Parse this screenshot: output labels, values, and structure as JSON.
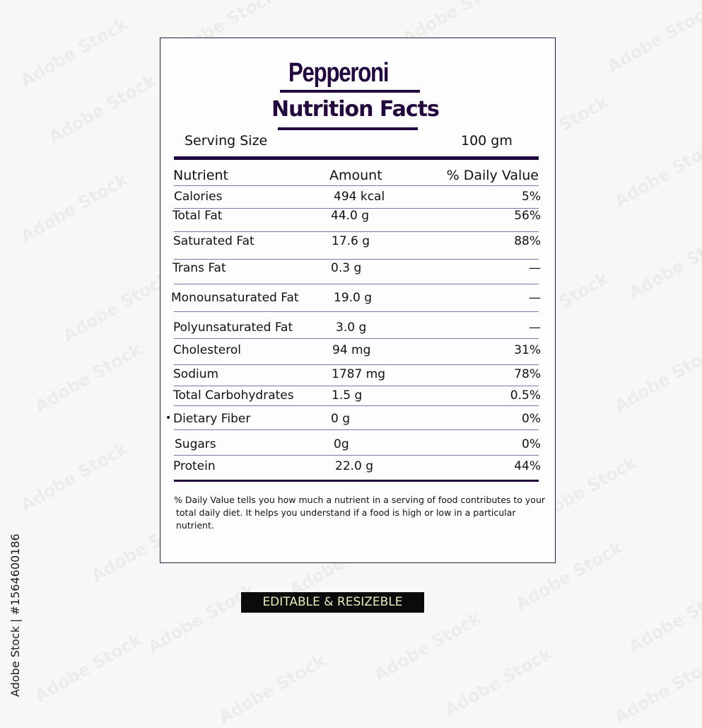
{
  "label": {
    "product_name": "Pepperoni",
    "heading": "Nutrition Facts",
    "serving_size_label": "Serving Size",
    "serving_size_value": "100 gm",
    "columns": {
      "nutrient": "Nutrient",
      "amount": "Amount",
      "daily_value": "% Daily Value"
    },
    "rows": [
      {
        "nutrient": "Calories",
        "amount": "494 kcal",
        "dv": "5%"
      },
      {
        "nutrient": "Total Fat",
        "amount": "44.0 g",
        "dv": "56%"
      },
      {
        "nutrient": "Saturated Fat",
        "amount": "17.6 g",
        "dv": "88%"
      },
      {
        "nutrient": "Trans Fat",
        "amount": "0.3 g",
        "dv": "—"
      },
      {
        "nutrient": "Monounsaturated  Fat",
        "amount": "19.0 g",
        "dv": "—"
      },
      {
        "nutrient": "Polyunsaturated Fat",
        "amount": "3.0 g",
        "dv": "—"
      },
      {
        "nutrient": "Cholesterol",
        "amount": "94 mg",
        "dv": "31%"
      },
      {
        "nutrient": "Sodium",
        "amount": "1787 mg",
        "dv": "78%"
      },
      {
        "nutrient": "Total Carbohydrates",
        "amount": "1.5 g",
        "dv": "0.5%"
      },
      {
        "nutrient": "Dietary Fiber",
        "amount": "0 g",
        "dv": "0%",
        "bullet": "•"
      },
      {
        "nutrient": "Sugars",
        "amount": "0g",
        "dv": "0%"
      },
      {
        "nutrient": "Protein",
        "amount": "22.0 g",
        "dv": "44%"
      }
    ],
    "footnote_line1": "% Daily Value tells you how much a nutrient in a serving of food contributes to your",
    "footnote_line2": "total daily diet. It helps you understand if a food is high or low in a particular nutrient."
  },
  "badge": "EDITABLE & RESIZEBLE",
  "stock_id": "Adobe Stock | #1564600186",
  "watermark_text": "Adobe Stock",
  "colors": {
    "brand_purple": "#23073f",
    "rule_lines": "#7d77a8",
    "badge_bg": "#0b0b0b",
    "badge_text": "#e8ecb8"
  }
}
